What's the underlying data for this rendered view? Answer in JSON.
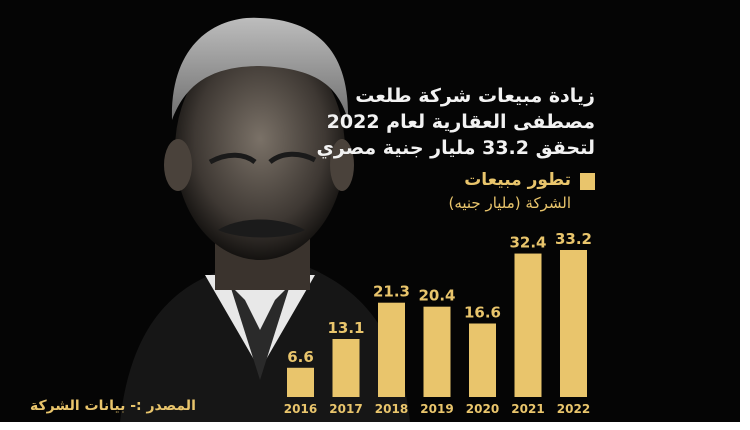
{
  "headline": {
    "line1": "زيادة مبيعات شركة طلعت",
    "line2": "مصطفى العقارية لعام 2022",
    "line3": "لتحقق 33.2 مليار جنية مصري"
  },
  "legend": {
    "line1": "تطور مبيعات",
    "line2": "الشركة (مليار جنيه)"
  },
  "source": "المصدر :- بيانات الشركة",
  "colors": {
    "background": "#050505",
    "bar": "#e9c56c",
    "text": "#f2f2f2",
    "accent": "#e9c56c"
  },
  "chart_data": {
    "type": "bar",
    "categories": [
      "2016",
      "2017",
      "2018",
      "2019",
      "2020",
      "2021",
      "2022"
    ],
    "values": [
      6.6,
      13.1,
      21.3,
      20.4,
      16.6,
      32.4,
      33.2
    ],
    "data_labels": [
      "6.6",
      "13.1",
      "21.3",
      "20.4",
      "16.6",
      "32.4",
      "33.2"
    ],
    "title": "تطور مبيعات الشركة (مليار جنيه)",
    "ylim": [
      0,
      33.2
    ],
    "grid": false,
    "legend_position": "top-right"
  }
}
